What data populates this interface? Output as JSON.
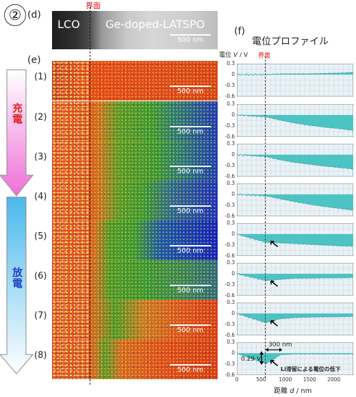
{
  "figure": {
    "panel_number": "②",
    "label_d": "(d)",
    "label_e": "(e)",
    "label_f": "(f)",
    "interface_label": "界面",
    "tem": {
      "left_label": "LCO",
      "right_label": "Ge-doped-LATSPO",
      "scale": "500 nm"
    },
    "arrow_charge": "充電",
    "arrow_discharge": "放電",
    "rows": [
      {
        "label": "(1)",
        "scale": "500 nm"
      },
      {
        "label": "(2)",
        "scale": "500 nm"
      },
      {
        "label": "(3)",
        "scale": "500 nm"
      },
      {
        "label": "(4)",
        "scale": "500 nm"
      },
      {
        "label": "(5)",
        "scale": "500 nm"
      },
      {
        "label": "(6)",
        "scale": "500 nm"
      },
      {
        "label": "(7)",
        "scale": "500 nm"
      },
      {
        "label": "(8)",
        "scale": "500 nm"
      }
    ],
    "profile_title": "電位プロファイル",
    "ylabel_prefix": "電位",
    "ylabel_var": "V",
    "ylabel_unit": "/ V",
    "xlabel_prefix": "距離",
    "xlabel_var": "d",
    "xlabel_unit": "/ nm",
    "annotation_300": "300 nm",
    "annotation_029": "0.29 V",
    "annotation_text": "Li滞留による電位の低下"
  },
  "chart_data": {
    "type": "area",
    "x_ticks": [
      "0",
      "500",
      "1000",
      "1500",
      "2000"
    ],
    "xlim": [
      0,
      2400
    ],
    "ylim": [
      -0.6,
      0.3
    ],
    "y_ticks": [
      "0.3",
      "0",
      "-0.3",
      "-0.6"
    ],
    "interface_x": 600,
    "series": [
      {
        "x": [
          0,
          600,
          900,
          1200,
          1500,
          1800,
          2100,
          2400
        ],
        "y": [
          0,
          0,
          0.02,
          0.02,
          0.02,
          0.03,
          0.04,
          0.06
        ]
      },
      {
        "x": [
          0,
          600,
          900,
          1200,
          1500,
          1800,
          2100,
          2400
        ],
        "y": [
          0,
          -0.05,
          -0.14,
          -0.22,
          -0.28,
          -0.33,
          -0.37,
          -0.42
        ]
      },
      {
        "x": [
          0,
          600,
          900,
          1200,
          1500,
          1800,
          2100,
          2400
        ],
        "y": [
          0,
          -0.05,
          -0.14,
          -0.21,
          -0.26,
          -0.31,
          -0.35,
          -0.39
        ]
      },
      {
        "x": [
          0,
          600,
          900,
          1200,
          1500,
          1800,
          2100,
          2400
        ],
        "y": [
          0,
          -0.04,
          -0.12,
          -0.2,
          -0.27,
          -0.33,
          -0.38,
          -0.43
        ]
      },
      {
        "x": [
          0,
          600,
          900,
          1200,
          1500,
          1800,
          2100,
          2400
        ],
        "y": [
          0,
          -0.22,
          -0.24,
          -0.26,
          -0.28,
          -0.3,
          -0.32,
          -0.33
        ]
      },
      {
        "x": [
          0,
          600,
          900,
          1200,
          1500,
          1800,
          2100,
          2400
        ],
        "y": [
          0,
          -0.18,
          -0.15,
          -0.12,
          -0.12,
          -0.11,
          -0.11,
          -0.1
        ]
      },
      {
        "x": [
          0,
          600,
          900,
          1200,
          1500,
          1800,
          2100,
          2400
        ],
        "y": [
          0,
          -0.25,
          -0.14,
          -0.11,
          -0.1,
          -0.09,
          -0.09,
          -0.08
        ]
      },
      {
        "x": [
          0,
          600,
          900,
          1200,
          1500,
          1800,
          2100,
          2400
        ],
        "y": [
          0,
          -0.29,
          -0.04,
          -0.02,
          -0.02,
          -0.02,
          -0.02,
          -0.02
        ]
      }
    ]
  },
  "colors": {
    "fill": "#4cc4c4",
    "grid": "#f4b8c8",
    "bg": "#e4f4f8"
  }
}
